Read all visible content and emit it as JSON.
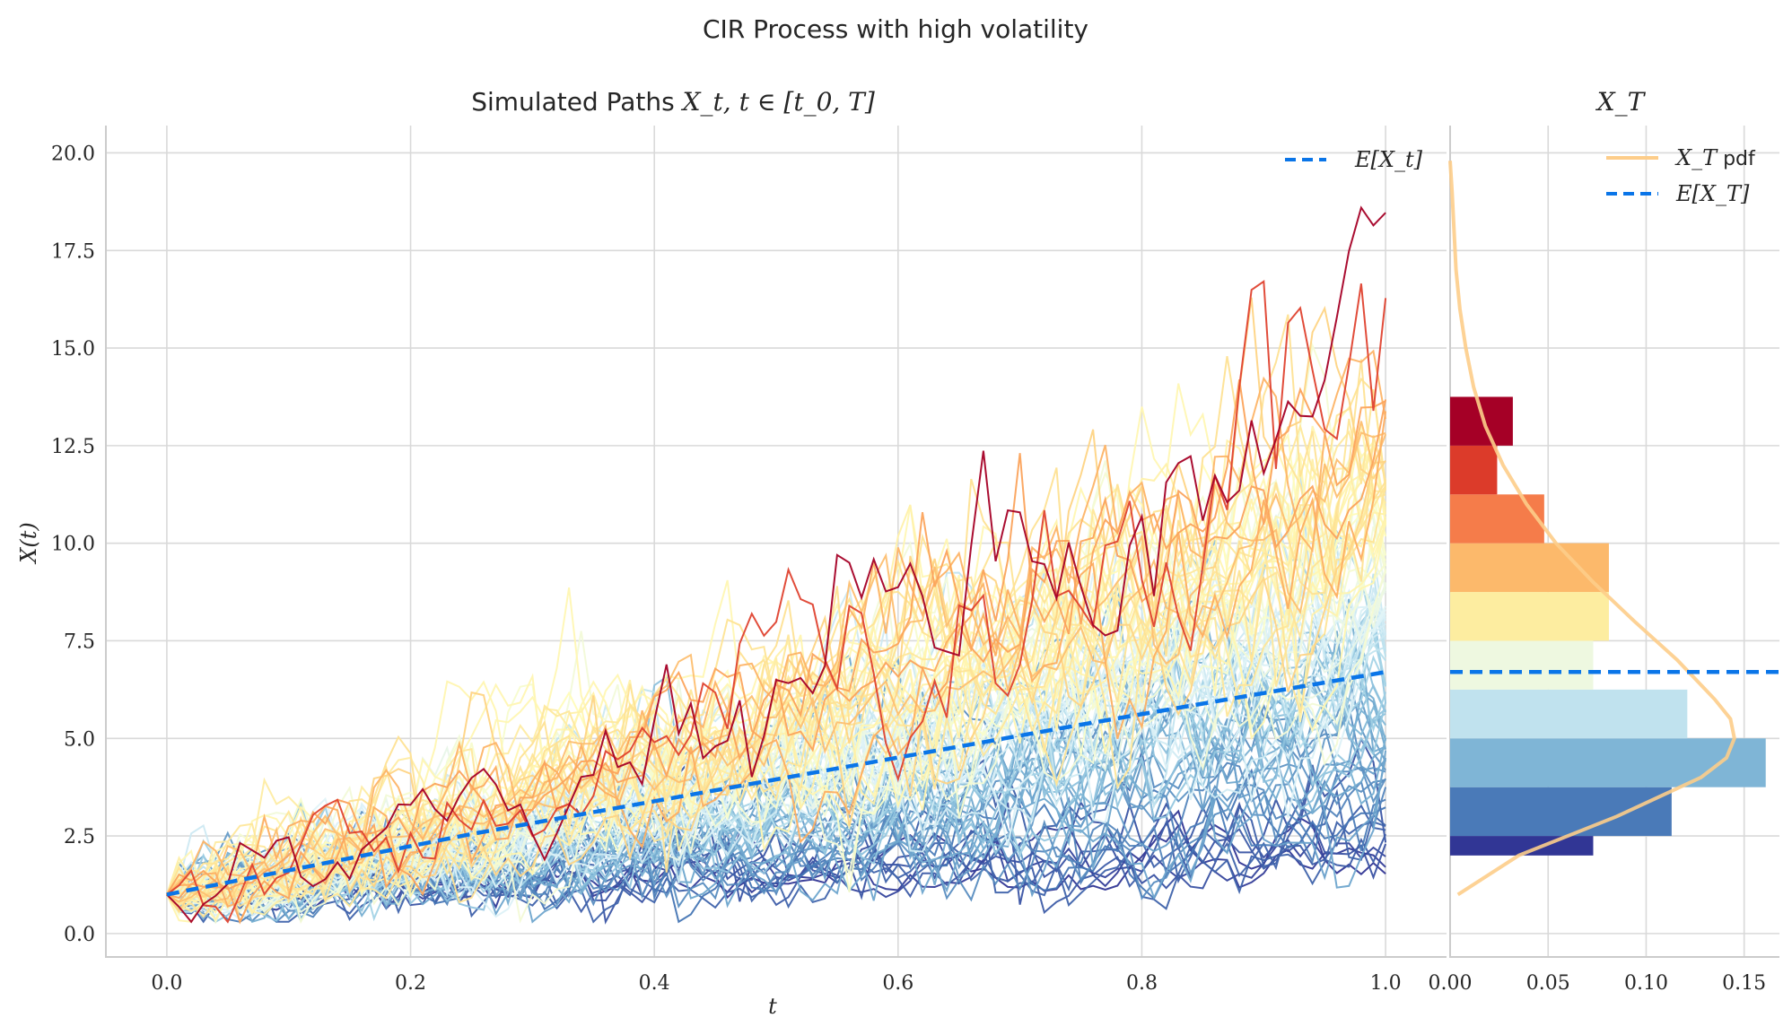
{
  "suptitle": "CIR Process with high volatility",
  "chart_data": [
    {
      "type": "line",
      "title_prefix": "Simulated Paths",
      "title_math": "X_t, t ∈ [t_0, T]",
      "xlabel": "t",
      "ylabel": "X(t)",
      "xlim": [
        -0.05,
        1.05
      ],
      "ylim": [
        -0.6,
        20.7
      ],
      "xticks": [
        "0.0",
        "0.2",
        "0.4",
        "0.6",
        "0.8",
        "1.0"
      ],
      "yticks": [
        "0.0",
        "2.5",
        "5.0",
        "7.5",
        "10.0",
        "12.5",
        "15.0",
        "17.5",
        "20.0"
      ],
      "grid": true,
      "legend": {
        "position": "top-right",
        "entries": [
          "E[X_t]"
        ]
      },
      "paths": {
        "count": 100,
        "x0": 1.0,
        "t_start": 0.0,
        "t_end": 1.0,
        "steps": 100,
        "colormap": "RdYlBu_r",
        "terminal_range": [
          2.0,
          14.4
        ]
      },
      "expectation": {
        "name": "E[X_t]",
        "x": [
          0.0,
          0.25,
          0.5,
          0.75,
          1.0
        ],
        "y": [
          1.0,
          2.55,
          3.95,
          5.35,
          6.7
        ],
        "color": "#0a75e8",
        "style": "dashed"
      }
    },
    {
      "type": "bar",
      "orientation": "horizontal",
      "title_math": "X_T",
      "xlim": [
        0.0,
        0.168
      ],
      "xticks": [
        "0.00",
        "0.05",
        "0.10",
        "0.15"
      ],
      "grid": true,
      "legend": {
        "position": "top-right",
        "entries": [
          "X_T pdf",
          "E[X_T]"
        ]
      },
      "bins": [
        {
          "low": 2.0,
          "high": 2.5,
          "density": 0.073,
          "color": "#313695"
        },
        {
          "low": 2.5,
          "high": 3.75,
          "density": 0.113,
          "color": "#4a7ab8"
        },
        {
          "low": 3.75,
          "high": 5.0,
          "density": 0.161,
          "color": "#7fb5d6"
        },
        {
          "low": 5.0,
          "high": 6.25,
          "density": 0.121,
          "color": "#c0e2ee"
        },
        {
          "low": 6.25,
          "high": 7.5,
          "density": 0.073,
          "color": "#eef8e0"
        },
        {
          "low": 7.5,
          "high": 8.75,
          "density": 0.081,
          "color": "#fdeda0"
        },
        {
          "low": 8.75,
          "high": 10.0,
          "density": 0.081,
          "color": "#fcb96b"
        },
        {
          "low": 10.0,
          "high": 11.25,
          "density": 0.048,
          "color": "#f57c4a"
        },
        {
          "low": 11.25,
          "high": 12.5,
          "density": 0.024,
          "color": "#dc3b2a"
        },
        {
          "low": 12.5,
          "high": 13.75,
          "density": 0.032,
          "color": "#a50026"
        }
      ],
      "pdf": {
        "name": "X_T pdf",
        "color": "#fdcd8a",
        "points": [
          [
            1.0,
            0.004
          ],
          [
            2.0,
            0.035
          ],
          [
            3.0,
            0.085
          ],
          [
            4.0,
            0.128
          ],
          [
            4.5,
            0.141
          ],
          [
            5.0,
            0.145
          ],
          [
            5.5,
            0.143
          ],
          [
            6.0,
            0.135
          ],
          [
            7.0,
            0.116
          ],
          [
            8.0,
            0.094
          ],
          [
            9.0,
            0.073
          ],
          [
            10.0,
            0.054
          ],
          [
            11.0,
            0.039
          ],
          [
            12.0,
            0.027
          ],
          [
            13.0,
            0.018
          ],
          [
            14.0,
            0.012
          ],
          [
            15.0,
            0.008
          ],
          [
            16.0,
            0.005
          ],
          [
            17.0,
            0.003
          ],
          [
            18.0,
            0.002
          ],
          [
            19.0,
            0.001
          ],
          [
            19.8,
            0.0
          ]
        ]
      },
      "expectation": {
        "name": "E[X_T]",
        "value": 6.7,
        "color": "#0a75e8",
        "style": "dashed"
      }
    }
  ]
}
